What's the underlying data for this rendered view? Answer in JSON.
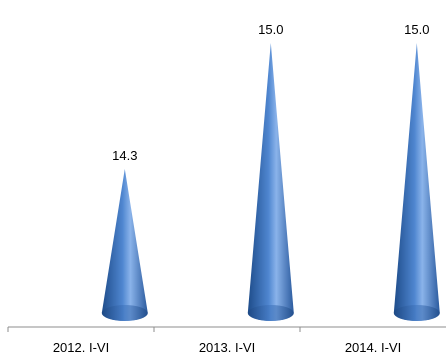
{
  "chart_data": {
    "type": "bar",
    "mark_shape": "cone",
    "categories": [
      "2012. I-VI",
      "2013. I-VI",
      "2014. I-VI"
    ],
    "values": [
      14.3,
      15.0,
      15.0
    ],
    "value_labels": [
      "14.3",
      "15.0",
      "15.0"
    ],
    "title": "",
    "xlabel": "",
    "ylabel": "",
    "ylim": [
      13.5,
      15.0
    ],
    "grid": false,
    "legend": "none",
    "colors": {
      "cone_dark": "#1e4c8a",
      "cone_mid": "#4f86d0",
      "cone_light": "#8ab3ea",
      "axis": "#8c8c8c"
    }
  }
}
